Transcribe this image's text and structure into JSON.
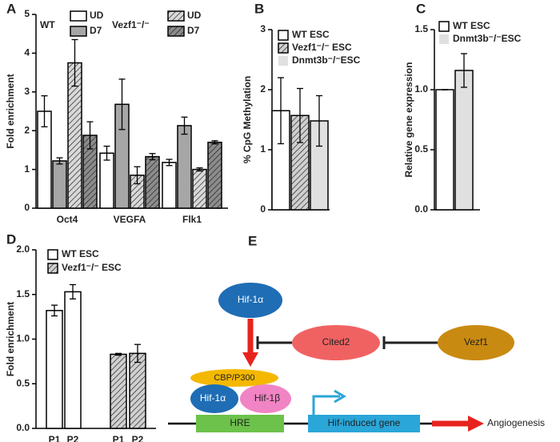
{
  "chart_data": [
    {
      "panel": "A",
      "type": "bar",
      "ylabel": "Fold enrichment",
      "categories": [
        "Oct4",
        "VEGFA",
        "Flk1"
      ],
      "legend_groups": [
        "WT",
        "Vezf1⁻/⁻"
      ],
      "series": [
        {
          "name": "UD",
          "color": "#ffffff",
          "hatch": false,
          "values": [
            2.5,
            1.42,
            1.18
          ],
          "errors": [
            0.4,
            0.18,
            0.08
          ]
        },
        {
          "name": "D7",
          "color": "#a6a6a6",
          "hatch": false,
          "values": [
            1.22,
            2.68,
            2.13
          ],
          "errors": [
            0.08,
            0.65,
            0.22
          ]
        },
        {
          "name": "UD",
          "color": "#d9d9d9",
          "hatch": true,
          "values": [
            3.75,
            0.85,
            1.0
          ],
          "errors": [
            0.6,
            0.22,
            0.04
          ]
        },
        {
          "name": "D7",
          "color": "#8c8c8c",
          "hatch": true,
          "values": [
            1.88,
            1.33,
            1.7
          ],
          "errors": [
            0.35,
            0.08,
            0.04
          ]
        }
      ],
      "ylim": [
        0,
        5
      ],
      "yticks": [
        0,
        1,
        2,
        3,
        4,
        5
      ]
    },
    {
      "panel": "B",
      "type": "bar",
      "ylabel": "% CpG Methylation",
      "series": [
        {
          "name": "WT ESC",
          "color": "#ffffff",
          "hatch": false,
          "values": [
            1.65
          ],
          "errors": [
            0.55
          ]
        },
        {
          "name": "Vezf1⁻/⁻ ESC",
          "color": "#d0d0d0",
          "hatch": true,
          "values": [
            1.57
          ],
          "errors": [
            0.45
          ]
        },
        {
          "name": "Dnmt3b⁻/⁻ESC",
          "color": "#e0e0e0",
          "hatch": false,
          "values": [
            1.48
          ],
          "errors": [
            0.42
          ]
        }
      ],
      "ylim": [
        0,
        3
      ],
      "yticks": [
        0,
        1,
        2,
        3
      ]
    },
    {
      "panel": "C",
      "type": "bar",
      "ylabel": "Relative gene expression",
      "series": [
        {
          "name": "WT ESC",
          "color": "#ffffff",
          "hatch": false,
          "values": [
            1.0
          ],
          "errors": [
            0
          ]
        },
        {
          "name": "Dnmt3b⁻/⁻ESC",
          "color": "#e0e0e0",
          "hatch": false,
          "values": [
            1.16
          ],
          "errors": [
            0.14
          ]
        }
      ],
      "ylim": [
        0,
        1.5
      ],
      "yticks": [
        {
          "value": 0,
          "label": "0.0"
        },
        0.5,
        {
          "value": 1,
          "label": "1.0"
        },
        1.5
      ]
    },
    {
      "panel": "D",
      "type": "bar",
      "ylabel": "Fold enrichment",
      "categories": [
        "P1",
        "P2",
        "P1",
        "P2"
      ],
      "series": [
        {
          "name": "WT ESC",
          "color": "#ffffff",
          "hatch": false,
          "values": [
            1.32,
            1.53,
            null,
            null
          ],
          "errors": [
            0.06,
            0.08,
            null,
            null
          ]
        },
        {
          "name": "Vezf1⁻/⁻ ESC",
          "color": "#d0d0d0",
          "hatch": true,
          "values": [
            null,
            null,
            0.83,
            0.84
          ],
          "errors": [
            null,
            null,
            0.01,
            0.1
          ]
        }
      ],
      "ylim": [
        0,
        2
      ],
      "yticks": [
        {
          "value": 0,
          "label": "0.0"
        },
        0.5,
        {
          "value": 1,
          "label": "1.0"
        },
        1.5,
        {
          "value": 2,
          "label": "2.0"
        }
      ]
    }
  ],
  "diagram": {
    "panel": "E",
    "hif1a_top": "Hif-1α",
    "cited2": "Cited2",
    "vezf1": "Vezf1",
    "cbp": "CBP/P300",
    "hif1a": "Hif-1α",
    "hif1b": "Hif-1β",
    "hre": "HRE",
    "gene": "Hif-induced gene",
    "outcome": "Angiogenesis"
  }
}
